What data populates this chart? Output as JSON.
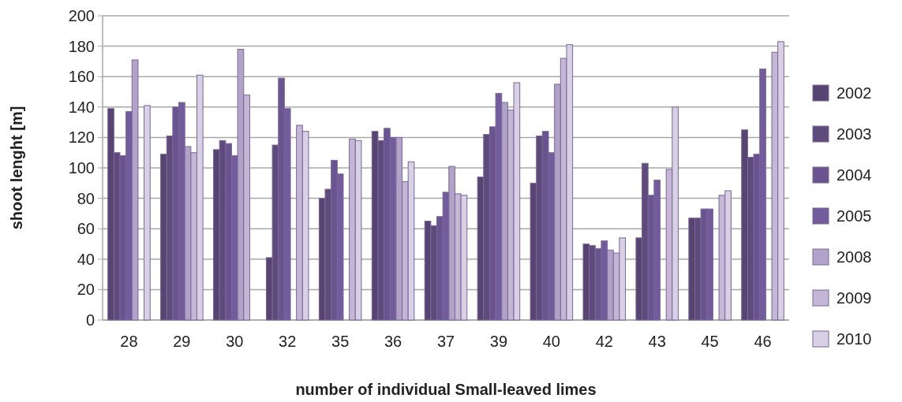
{
  "chart_data": {
    "type": "bar",
    "xlabel": "number of individual Small-leaved limes",
    "ylabel": "shoot lenght [m]",
    "categories": [
      "28",
      "29",
      "30",
      "32",
      "35",
      "36",
      "37",
      "39",
      "40",
      "42",
      "43",
      "45",
      "46"
    ],
    "series": [
      {
        "name": "2002",
        "color": "#574470",
        "values": [
          139,
          109,
          112,
          41,
          80,
          124,
          65,
          94,
          90,
          50,
          54,
          67,
          125
        ]
      },
      {
        "name": "2003",
        "color": "#5f4a7c",
        "values": [
          110,
          121,
          118,
          115,
          86,
          118,
          62,
          122,
          121,
          49,
          103,
          67,
          107
        ]
      },
      {
        "name": "2004",
        "color": "#6a5490",
        "values": [
          108,
          140,
          116,
          159,
          105,
          126,
          68,
          127,
          124,
          47,
          82,
          73,
          109
        ]
      },
      {
        "name": "2005",
        "color": "#735c9b",
        "values": [
          137,
          143,
          108,
          139,
          96,
          120,
          84,
          149,
          110,
          52,
          92,
          73,
          165
        ]
      },
      {
        "name": "2008",
        "color": "#b1a3c8",
        "values": [
          171,
          114,
          178,
          null,
          null,
          120,
          101,
          143,
          155,
          46,
          null,
          null,
          null
        ]
      },
      {
        "name": "2009",
        "color": "#c3b7d5",
        "values": [
          null,
          110,
          148,
          128,
          119,
          91,
          83,
          138,
          172,
          44,
          99,
          82,
          176
        ]
      },
      {
        "name": "2010",
        "color": "#d8d0e4",
        "values": [
          141,
          161,
          null,
          124,
          118,
          104,
          82,
          156,
          181,
          54,
          140,
          85,
          183
        ]
      }
    ],
    "ylim": [
      0,
      200
    ],
    "yticks": [
      0,
      20,
      40,
      60,
      80,
      100,
      120,
      140,
      160,
      180,
      200
    ],
    "grid": "y",
    "legend": "right"
  }
}
